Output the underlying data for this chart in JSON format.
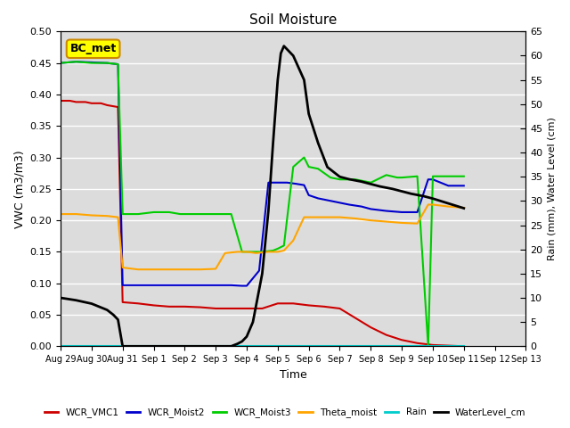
{
  "title": "Soil Moisture",
  "xlabel": "Time",
  "ylabel_left": "VWC (m3/m3)",
  "ylabel_right": "Rain (mm), Water Level (cm)",
  "annotation": "BC_met",
  "ylim_left": [
    0.0,
    0.5
  ],
  "ylim_right": [
    0,
    65
  ],
  "background_color": "#dcdcdc",
  "series": {
    "WCR_VMC1": {
      "color": "#cc0000",
      "x": [
        0,
        0.3,
        0.5,
        0.8,
        1.0,
        1.3,
        1.5,
        1.85,
        2.0,
        2.5,
        3.0,
        3.5,
        4.0,
        4.5,
        5.0,
        5.5,
        6.0,
        6.5,
        7.0,
        7.5,
        8.0,
        8.5,
        9.0,
        9.5,
        10.0,
        10.5,
        11.0,
        11.5,
        12.0,
        12.5,
        13.0
      ],
      "y": [
        0.39,
        0.39,
        0.388,
        0.388,
        0.386,
        0.386,
        0.383,
        0.38,
        0.07,
        0.068,
        0.065,
        0.063,
        0.063,
        0.062,
        0.06,
        0.06,
        0.06,
        0.06,
        0.068,
        0.068,
        0.065,
        0.063,
        0.06,
        0.045,
        0.03,
        0.018,
        0.01,
        0.005,
        0.002,
        0.001,
        0.0
      ]
    },
    "WCR_Moist2": {
      "color": "#0000cc",
      "x": [
        0,
        0.5,
        1.0,
        1.5,
        1.85,
        2.0,
        2.5,
        3.0,
        3.5,
        4.0,
        4.5,
        5.0,
        5.5,
        5.85,
        6.0,
        6.4,
        6.7,
        7.0,
        7.3,
        7.6,
        7.85,
        8.0,
        8.3,
        8.6,
        9.0,
        9.3,
        9.7,
        10.0,
        10.5,
        11.0,
        11.5,
        11.85,
        12.0,
        12.5,
        13.0
      ],
      "y": [
        0.45,
        0.452,
        0.451,
        0.45,
        0.448,
        0.097,
        0.097,
        0.097,
        0.097,
        0.097,
        0.097,
        0.097,
        0.097,
        0.096,
        0.096,
        0.12,
        0.26,
        0.26,
        0.26,
        0.258,
        0.256,
        0.24,
        0.235,
        0.232,
        0.228,
        0.225,
        0.222,
        0.218,
        0.215,
        0.213,
        0.213,
        0.265,
        0.265,
        0.255,
        0.255
      ]
    },
    "WCR_Moist3": {
      "color": "#00cc00",
      "x": [
        0,
        0.5,
        1.0,
        1.5,
        1.85,
        2.0,
        2.5,
        3.0,
        3.5,
        3.85,
        4.0,
        4.5,
        5.0,
        5.5,
        5.85,
        6.0,
        6.5,
        6.85,
        7.0,
        7.2,
        7.5,
        7.85,
        8.0,
        8.3,
        8.7,
        9.0,
        9.5,
        10.0,
        10.5,
        10.85,
        11.0,
        11.5,
        11.85,
        12.0,
        12.5,
        13.0
      ],
      "y": [
        0.45,
        0.452,
        0.45,
        0.45,
        0.448,
        0.21,
        0.21,
        0.213,
        0.213,
        0.21,
        0.21,
        0.21,
        0.21,
        0.21,
        0.15,
        0.15,
        0.15,
        0.152,
        0.155,
        0.16,
        0.285,
        0.3,
        0.285,
        0.282,
        0.268,
        0.265,
        0.265,
        0.26,
        0.272,
        0.268,
        0.268,
        0.27,
        0.0,
        0.27,
        0.27,
        0.27
      ]
    },
    "Theta_moist": {
      "color": "#ffa500",
      "x": [
        0,
        0.5,
        1.0,
        1.5,
        1.85,
        2.0,
        2.5,
        3.0,
        3.5,
        4.0,
        4.5,
        5.0,
        5.3,
        5.7,
        6.0,
        6.3,
        6.7,
        7.0,
        7.2,
        7.5,
        7.85,
        8.0,
        8.5,
        9.0,
        9.5,
        10.0,
        10.5,
        11.0,
        11.5,
        11.85,
        12.0,
        12.5,
        13.0
      ],
      "y": [
        0.21,
        0.21,
        0.208,
        0.207,
        0.205,
        0.125,
        0.122,
        0.122,
        0.122,
        0.122,
        0.122,
        0.123,
        0.148,
        0.15,
        0.15,
        0.148,
        0.15,
        0.15,
        0.152,
        0.168,
        0.205,
        0.205,
        0.205,
        0.205,
        0.203,
        0.2,
        0.198,
        0.196,
        0.195,
        0.225,
        0.225,
        0.222,
        0.22
      ]
    },
    "Rain": {
      "color": "#00cccc",
      "x": [
        0,
        13.0
      ],
      "y": [
        0.0,
        0.0
      ]
    },
    "WaterLevel_cm": {
      "color": "#000000",
      "x": [
        0,
        0.5,
        1.0,
        1.5,
        1.7,
        1.85,
        2.0,
        2.5,
        3.0,
        3.5,
        4.0,
        4.5,
        5.0,
        5.5,
        5.7,
        5.85,
        6.0,
        6.2,
        6.5,
        6.7,
        6.85,
        7.0,
        7.1,
        7.2,
        7.5,
        7.85,
        8.0,
        8.3,
        8.6,
        9.0,
        9.3,
        9.7,
        10.0,
        10.3,
        10.7,
        11.0,
        11.3,
        11.7,
        12.0,
        12.5,
        13.0
      ],
      "y": [
        10.0,
        9.5,
        8.8,
        7.5,
        6.5,
        5.5,
        0.0,
        0.0,
        0.0,
        0.0,
        0.0,
        0.0,
        0.0,
        0.0,
        0.5,
        1.0,
        2.0,
        5.0,
        15.0,
        28.0,
        42.0,
        55.0,
        60.5,
        62.0,
        60.0,
        55.0,
        48.0,
        42.0,
        37.0,
        35.0,
        34.5,
        34.0,
        33.5,
        33.0,
        32.5,
        32.0,
        31.5,
        31.0,
        30.5,
        29.5,
        28.5
      ]
    }
  },
  "xtick_labels": [
    "Aug 29",
    "Aug 30",
    "Aug 31",
    "Sep 1",
    "Sep 2",
    "Sep 3",
    "Sep 4",
    "Sep 5",
    "Sep 6",
    "Sep 7",
    "Sep 8",
    "Sep 9",
    "Sep 10",
    "Sep 11",
    "Sep 12",
    "Sep 13"
  ],
  "xtick_positions": [
    0,
    1,
    2,
    3,
    4,
    5,
    6,
    7,
    8,
    9,
    10,
    11,
    12,
    13,
    14,
    15
  ],
  "yticks_left": [
    0.0,
    0.05,
    0.1,
    0.15,
    0.2,
    0.25,
    0.3,
    0.35,
    0.4,
    0.45,
    0.5
  ],
  "yticks_right": [
    0,
    5,
    10,
    15,
    20,
    25,
    30,
    35,
    40,
    45,
    50,
    55,
    60,
    65
  ],
  "legend_entries": [
    "WCR_VMC1",
    "WCR_Moist2",
    "WCR_Moist3",
    "Theta_moist",
    "Rain",
    "WaterLevel_cm"
  ],
  "legend_colors": [
    "#cc0000",
    "#0000cc",
    "#00cc00",
    "#ffa500",
    "#00cccc",
    "#000000"
  ]
}
